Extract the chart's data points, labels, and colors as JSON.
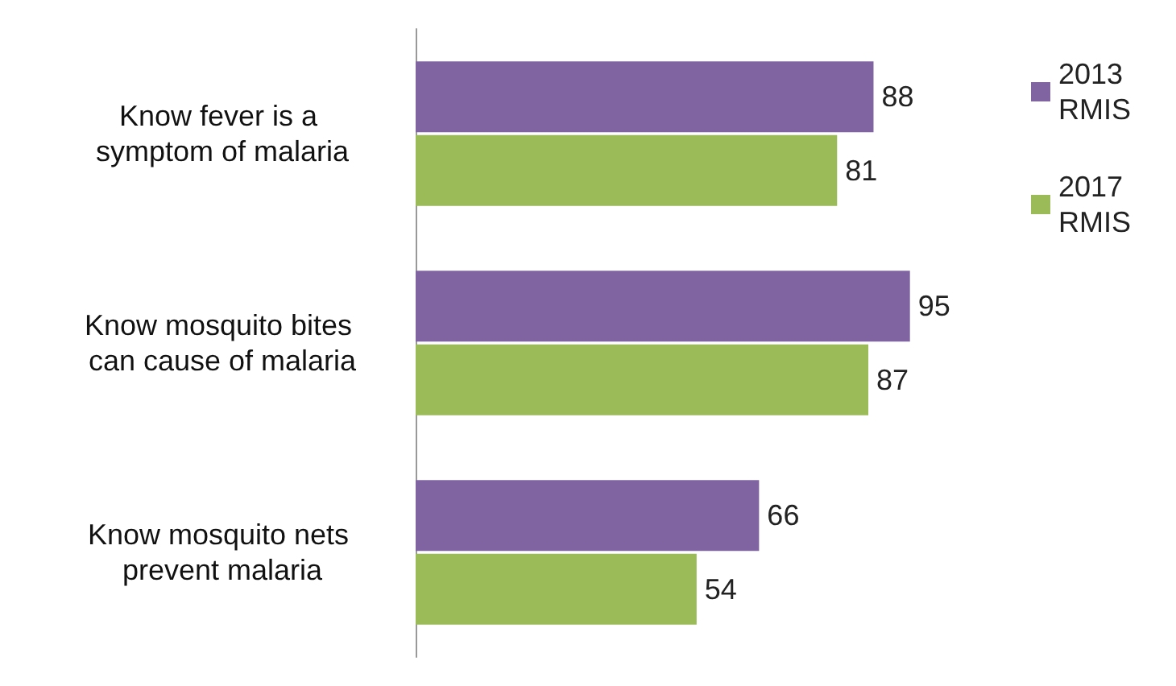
{
  "chart_data": {
    "type": "bar",
    "orientation": "horizontal",
    "categories": [
      "Know fever is a symptom of malaria",
      "Know mosquito bites can cause of malaria",
      "Know mosquito nets prevent malaria"
    ],
    "series": [
      {
        "name": "2013 RMIS",
        "color": "#8064a2",
        "values": [
          88,
          95,
          66
        ]
      },
      {
        "name": "2017 RMIS",
        "color": "#9bbb59",
        "values": [
          81,
          87,
          54
        ]
      }
    ],
    "data_labels": true,
    "legend": "top right"
  }
}
